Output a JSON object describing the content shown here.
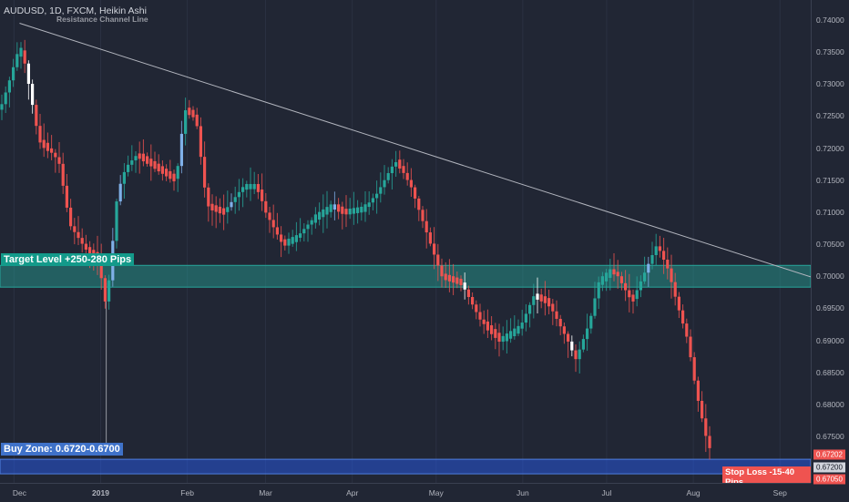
{
  "title": "AUDUSD, 1D, FXCM, Heikin Ashi",
  "trend_line_label": "Resistance Channel Line",
  "zones": {
    "target_label": "Target Level +250-280 Pips",
    "buy_label": "Buy Zone: 0.6720-0.6700",
    "stop_label": "Stop Loss -15-40 Pips"
  },
  "price_axis": [
    "0.74000",
    "0.73500",
    "0.73000",
    "0.72500",
    "0.72000",
    "0.71500",
    "0.71000",
    "0.70500",
    "0.70000",
    "0.69500",
    "0.69000",
    "0.68500",
    "0.68000",
    "0.67500"
  ],
  "time_axis": [
    "Dec",
    "2019",
    "Feb",
    "Mar",
    "Apr",
    "May",
    "Jun",
    "Jul",
    "Aug",
    "Sep"
  ],
  "price_tags": [
    {
      "text": "0.67202",
      "bg": "#ef5350",
      "fg": "#ffffff"
    },
    {
      "text": "0.67200",
      "bg": "#d1d4dc",
      "fg": "#131722"
    },
    {
      "text": "0.67050",
      "bg": "#ef5350",
      "fg": "#ffffff"
    }
  ],
  "colors": {
    "background": "#212634",
    "bull": "#26a69a",
    "bear": "#ef5350",
    "target_zone": "#26a69a",
    "buy_zone": "#2962ff",
    "trend_line": "#b2b5be"
  },
  "chart_data": {
    "type": "candlestick",
    "title": "AUDUSD, 1D, FXCM, Heikin Ashi",
    "ylim": [
      0.67,
      0.742
    ],
    "x_range": [
      "2018-11-26",
      "2019-09-12"
    ],
    "trend_line": {
      "start": {
        "date": "2018-12-03",
        "price": 0.7395
      },
      "end": {
        "date": "2019-09-12",
        "price": 0.6999
      }
    },
    "target_zone": [
      0.6983,
      0.7017
    ],
    "buy_zone": [
      0.67,
      0.672
    ],
    "swing_low_wick": {
      "date": "2019-01-03",
      "price": 0.672
    },
    "close_path": [
      [
        "2018-11-26",
        0.726
      ],
      [
        "2018-11-29",
        0.73
      ],
      [
        "2018-12-03",
        0.736
      ],
      [
        "2018-12-05",
        0.733
      ],
      [
        "2018-12-10",
        0.721
      ],
      [
        "2018-12-13",
        0.72
      ],
      [
        "2018-12-17",
        0.718
      ],
      [
        "2018-12-21",
        0.708
      ],
      [
        "2018-12-27",
        0.704
      ],
      [
        "2018-12-31",
        0.703
      ],
      [
        "2019-01-03",
        0.695
      ],
      [
        "2019-01-07",
        0.713
      ],
      [
        "2019-01-10",
        0.717
      ],
      [
        "2019-01-14",
        0.719
      ],
      [
        "2019-01-21",
        0.717
      ],
      [
        "2019-01-28",
        0.715
      ],
      [
        "2019-01-31",
        0.726
      ],
      [
        "2019-02-04",
        0.725
      ],
      [
        "2019-02-08",
        0.711
      ],
      [
        "2019-02-14",
        0.71
      ],
      [
        "2019-02-21",
        0.714
      ],
      [
        "2019-02-26",
        0.714
      ],
      [
        "2019-03-01",
        0.71
      ],
      [
        "2019-03-07",
        0.705
      ],
      [
        "2019-03-12",
        0.706
      ],
      [
        "2019-03-18",
        0.709
      ],
      [
        "2019-03-25",
        0.711
      ],
      [
        "2019-03-29",
        0.71
      ],
      [
        "2019-04-05",
        0.7105
      ],
      [
        "2019-04-10",
        0.713
      ],
      [
        "2019-04-15",
        0.717
      ],
      [
        "2019-04-17",
        0.718
      ],
      [
        "2019-04-22",
        0.714
      ],
      [
        "2019-04-29",
        0.705
      ],
      [
        "2019-05-03",
        0.7
      ],
      [
        "2019-05-10",
        0.699
      ],
      [
        "2019-05-17",
        0.693
      ],
      [
        "2019-05-24",
        0.69
      ],
      [
        "2019-05-31",
        0.692
      ],
      [
        "2019-06-05",
        0.697
      ],
      [
        "2019-06-10",
        0.696
      ],
      [
        "2019-06-17",
        0.69
      ],
      [
        "2019-06-20",
        0.687
      ],
      [
        "2019-06-25",
        0.693
      ],
      [
        "2019-06-28",
        0.699
      ],
      [
        "2019-07-03",
        0.701
      ],
      [
        "2019-07-05",
        0.7
      ],
      [
        "2019-07-10",
        0.696
      ],
      [
        "2019-07-15",
        0.701
      ],
      [
        "2019-07-19",
        0.705
      ],
      [
        "2019-07-23",
        0.701
      ],
      [
        "2019-07-26",
        0.696
      ],
      [
        "2019-07-30",
        0.69
      ],
      [
        "2019-08-02",
        0.682
      ],
      [
        "2019-08-06",
        0.674
      ],
      [
        "2019-08-08",
        0.672
      ]
    ]
  }
}
